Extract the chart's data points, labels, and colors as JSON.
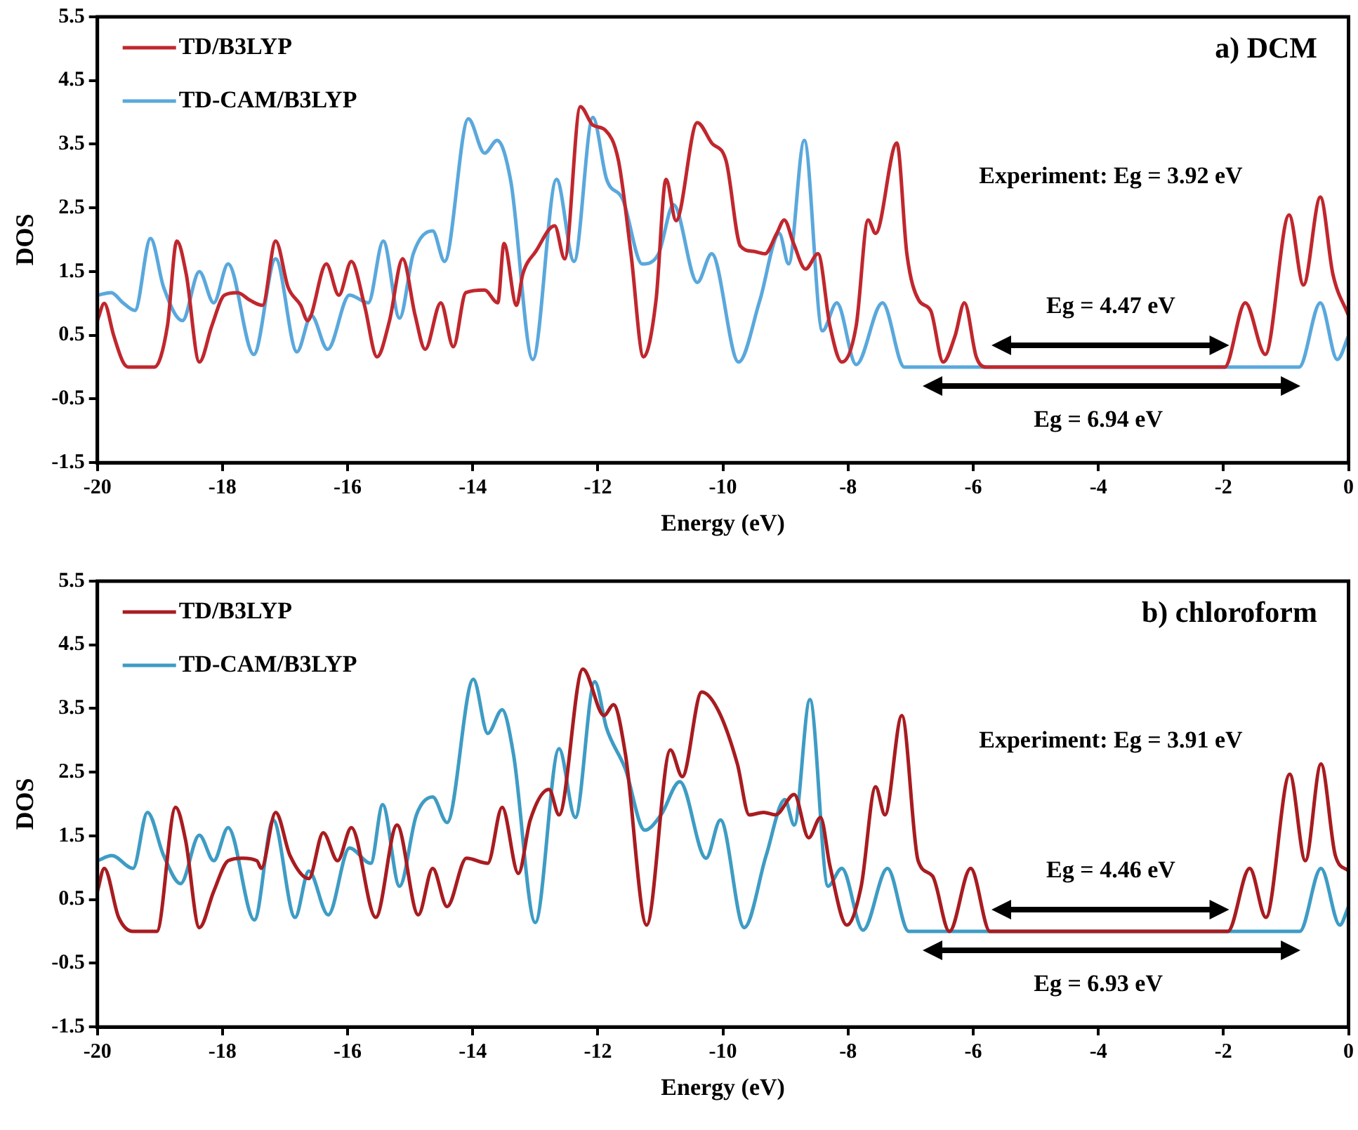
{
  "chart_data": [
    {
      "type": "line",
      "xlabel": "Energy (eV)",
      "ylabel": "DOS",
      "xlim": [
        -20,
        0
      ],
      "xticks": [
        -20,
        -18,
        -16,
        -14,
        -12,
        -10,
        -8,
        -6,
        -4,
        -2,
        0
      ],
      "ylim": [
        -1.5,
        5.5
      ],
      "yticks": [
        -1.5,
        -0.5,
        0.5,
        1.5,
        2.5,
        3.5,
        4.5,
        5.5
      ],
      "legend": "top left",
      "annotations": [
        "a) DCM",
        "Experiment: Eg = 3.92 eV",
        "Eg = 4.47 eV",
        "Eg = 6.94 eV"
      ],
      "series": [
        {
          "name": "TD/B3LYP",
          "color": "#c0272d",
          "x": [
            -20,
            -19.89,
            -19.74,
            -19.59,
            -19.5,
            -19.09,
            -18.88,
            -18.73,
            -18.58,
            -18.37,
            -18.17,
            -17.97,
            -17.76,
            -17.56,
            -17.36,
            -17.15,
            -16.95,
            -16.75,
            -16.64,
            -16.34,
            -16.14,
            -15.94,
            -15.73,
            -15.53,
            -15.33,
            -15.12,
            -14.92,
            -14.76,
            -14.51,
            -14.31,
            -14.11,
            -13.81,
            -13.6,
            -13.5,
            -13.3,
            -13.2,
            -12.99,
            -12.69,
            -12.53,
            -12.28,
            -12.08,
            -11.88,
            -11.67,
            -11.47,
            -11.27,
            -11.07,
            -10.91,
            -10.75,
            -10.41,
            -10.18,
            -9.95,
            -9.72,
            -9.52,
            -9.33,
            -9.14,
            -9.02,
            -8.87,
            -8.68,
            -8.48,
            -8.29,
            -8.1,
            -7.87,
            -7.68,
            -7.56,
            -7.22,
            -7.06,
            -6.87,
            -6.68,
            -6.48,
            -6.29,
            -6.14,
            -5.95,
            -5.79,
            -1.98,
            -1.65,
            -1.33,
            -0.95,
            -0.72,
            -0.45,
            -0.25,
            0
          ],
          "values": [
            0.73,
            1.0,
            0.5,
            0.08,
            0,
            0,
            0.65,
            1.98,
            1.46,
            0.08,
            0.65,
            1.13,
            1.17,
            1.05,
            0.97,
            1.98,
            1.25,
            0.97,
            0.73,
            1.62,
            1.13,
            1.66,
            0.97,
            0.16,
            0.73,
            1.7,
            0.81,
            0.28,
            1.01,
            0.32,
            1.17,
            1.21,
            1.01,
            1.94,
            0.97,
            1.46,
            1.82,
            2.22,
            1.7,
            4.09,
            3.8,
            3.72,
            3.24,
            1.78,
            0.16,
            1.05,
            2.95,
            2.3,
            3.84,
            3.52,
            3.24,
            1.9,
            1.82,
            1.78,
            2.1,
            2.31,
            1.94,
            1.54,
            1.78,
            0.65,
            0.08,
            0.65,
            2.31,
            2.1,
            3.52,
            1.78,
            1.05,
            0.89,
            0.08,
            0.49,
            1.01,
            0.16,
            0,
            0,
            1.01,
            0.2,
            2.39,
            1.29,
            2.67,
            1.46,
            0.81
          ]
        },
        {
          "name": "TD-CAM/B3LYP",
          "color": "#5aa8dc",
          "x": [
            -20,
            -19.78,
            -19.59,
            -19.4,
            -19.15,
            -18.94,
            -18.64,
            -18.37,
            -18.14,
            -17.91,
            -17.5,
            -17.15,
            -16.81,
            -16.58,
            -16.32,
            -15.97,
            -15.67,
            -15.43,
            -15.17,
            -14.95,
            -14.64,
            -14.45,
            -14.07,
            -13.81,
            -13.61,
            -13.39,
            -13.04,
            -12.66,
            -12.38,
            -12.08,
            -11.86,
            -11.6,
            -11.29,
            -11.03,
            -10.79,
            -10.41,
            -10.18,
            -9.75,
            -9.41,
            -9.1,
            -8.95,
            -8.7,
            -8.41,
            -8.18,
            -7.87,
            -7.45,
            -7.1,
            -0.79,
            -0.45,
            -0.18,
            0
          ],
          "values": [
            1.13,
            1.17,
            1.01,
            0.89,
            2.02,
            1.25,
            0.73,
            1.5,
            1.01,
            1.62,
            0.2,
            1.7,
            0.24,
            0.81,
            0.28,
            1.13,
            1.01,
            1.98,
            0.77,
            1.78,
            2.14,
            1.66,
            3.9,
            3.36,
            3.56,
            2.91,
            0.12,
            2.95,
            1.66,
            3.92,
            2.95,
            2.63,
            1.62,
            1.78,
            2.55,
            1.33,
            1.78,
            0.08,
            1.05,
            2.1,
            1.62,
            3.56,
            0.57,
            1.01,
            0.04,
            1.01,
            0,
            0,
            1.01,
            0.12,
            0.49
          ]
        }
      ]
    },
    {
      "type": "line",
      "xlabel": "Energy (eV)",
      "ylabel": "DOS",
      "xlim": [
        -20,
        0
      ],
      "xticks": [
        -20,
        -18,
        -16,
        -14,
        -12,
        -10,
        -8,
        -6,
        -4,
        -2,
        0
      ],
      "ylim": [
        -1.5,
        5.5
      ],
      "yticks": [
        -1.5,
        -0.5,
        0.5,
        1.5,
        2.5,
        3.5,
        4.5,
        5.5
      ],
      "legend": "top left",
      "annotations": [
        "b) chloroform",
        "Experiment: Eg = 3.91 eV",
        "Eg = 4.46 eV",
        "Eg = 6.93 eV"
      ],
      "series": [
        {
          "name": "TD/B3LYP",
          "color": "#a81c20",
          "x": [
            -20,
            -19.89,
            -19.66,
            -19.43,
            -19.05,
            -18.75,
            -18.59,
            -18.37,
            -18.14,
            -17.91,
            -17.68,
            -17.45,
            -17.38,
            -17.15,
            -16.92,
            -16.62,
            -16.39,
            -16.16,
            -15.94,
            -15.55,
            -15.21,
            -14.87,
            -14.64,
            -14.41,
            -14.1,
            -13.76,
            -13.53,
            -13.27,
            -13.08,
            -12.78,
            -12.62,
            -12.24,
            -11.9,
            -11.75,
            -11.56,
            -11.22,
            -10.84,
            -10.65,
            -10.34,
            -10.08,
            -9.77,
            -9.58,
            -9.35,
            -9.16,
            -8.86,
            -8.63,
            -8.44,
            -8.29,
            -8.02,
            -7.79,
            -7.56,
            -7.41,
            -7.14,
            -6.88,
            -6.65,
            -6.38,
            -6.04,
            -5.73,
            -1.93,
            -1.58,
            -1.32,
            -0.94,
            -0.69,
            -0.44,
            -0.21,
            0
          ],
          "values": [
            0.63,
            0.99,
            0.22,
            0,
            0,
            1.95,
            1.43,
            0.06,
            0.63,
            1.11,
            1.15,
            1.11,
            0.99,
            1.87,
            1.19,
            0.83,
            1.55,
            1.11,
            1.63,
            0.22,
            1.67,
            0.26,
            0.99,
            0.39,
            1.15,
            1.07,
            1.95,
            0.91,
            1.75,
            2.23,
            1.83,
            4.12,
            3.39,
            3.56,
            2.79,
            0.1,
            2.85,
            2.43,
            3.76,
            3.48,
            2.63,
            1.83,
            1.87,
            1.83,
            2.15,
            1.47,
            1.79,
            1.03,
            0.1,
            0.71,
            2.27,
            1.83,
            3.39,
            1.11,
            0.87,
            0,
            0.99,
            0,
            0,
            0.99,
            0.22,
            2.47,
            1.11,
            2.63,
            1.19,
            0.95
          ]
        },
        {
          "name": "TD-CAM/B3LYP",
          "color": "#3e9cc4",
          "x": [
            -20,
            -19.77,
            -19.43,
            -19.2,
            -18.94,
            -18.67,
            -18.37,
            -18.14,
            -17.91,
            -17.49,
            -17.19,
            -16.84,
            -16.62,
            -16.31,
            -15.97,
            -15.63,
            -15.44,
            -15.17,
            -14.9,
            -14.64,
            -14.41,
            -13.99,
            -13.76,
            -13.53,
            -13.35,
            -13.0,
            -12.62,
            -12.36,
            -12.05,
            -11.86,
            -11.56,
            -11.25,
            -10.99,
            -10.69,
            -10.27,
            -10.04,
            -9.66,
            -9.31,
            -9.01,
            -8.86,
            -8.61,
            -8.32,
            -8.1,
            -7.76,
            -7.37,
            -7.03,
            -0.78,
            -0.44,
            -0.14,
            0
          ],
          "values": [
            1.11,
            1.19,
            0.99,
            1.87,
            1.19,
            0.75,
            1.51,
            1.11,
            1.63,
            0.18,
            1.75,
            0.22,
            0.95,
            0.26,
            1.31,
            1.07,
            1.99,
            0.71,
            1.83,
            2.11,
            1.71,
            3.96,
            3.11,
            3.48,
            2.79,
            0.14,
            2.87,
            1.79,
            3.92,
            3.19,
            2.55,
            1.59,
            1.83,
            2.35,
            1.15,
            1.75,
            0.06,
            1.19,
            2.07,
            1.67,
            3.64,
            0.71,
            0.99,
            0.02,
            0.99,
            0,
            0,
            0.99,
            0.1,
            0.39
          ]
        }
      ]
    }
  ]
}
